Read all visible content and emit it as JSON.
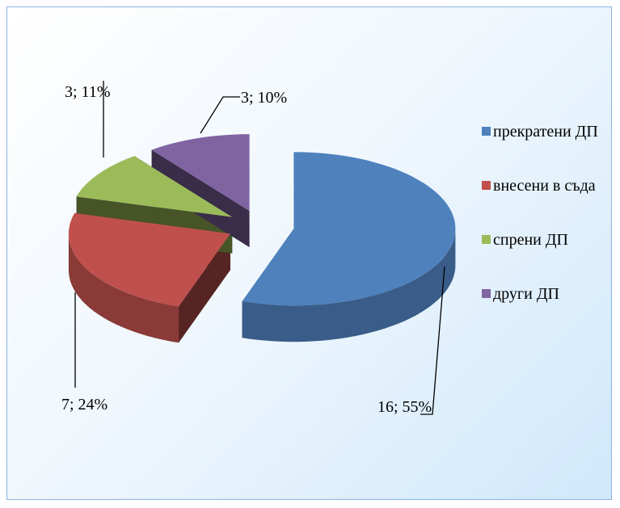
{
  "chart_data": {
    "type": "pie",
    "categories": [
      "прекратени ДП",
      "внесени в съда",
      "спрени ДП",
      "други ДП"
    ],
    "values": [
      16,
      7,
      3,
      3
    ],
    "value_labels": [
      "16; 55%",
      "7; 24%",
      "3; 11%",
      "3; 10%"
    ],
    "colors": [
      "#4f81bd",
      "#c0504d",
      "#9bbb59",
      "#8064a2"
    ],
    "legend": "right"
  }
}
